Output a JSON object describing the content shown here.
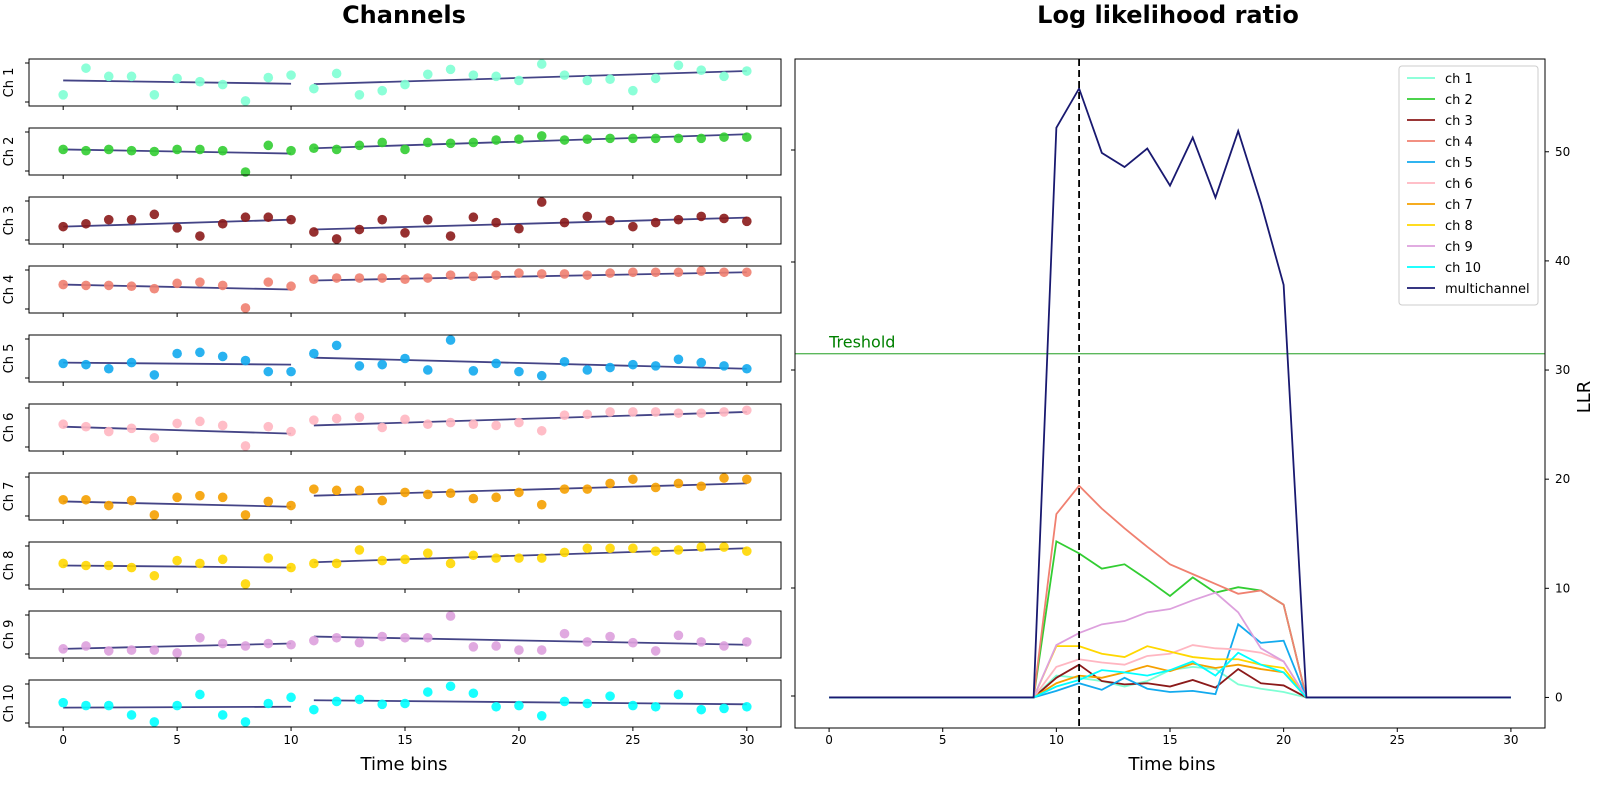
{
  "colors": {
    "ch1": "#7fffd4",
    "ch2": "#32cd32",
    "ch3": "#8b1a1a",
    "ch4": "#f08070",
    "ch5": "#12aaee",
    "ch6": "#ffb6c1",
    "ch7": "#f5a000",
    "ch8": "#ffd700",
    "ch9": "#dda0dd",
    "ch10": "#00ffff",
    "multichannel": "#191970",
    "fit": "#3b3b80",
    "threshold": "#5cb85c",
    "threshold_text": "#008000"
  },
  "chart_data": [
    {
      "type": "scatter",
      "title": "Channels",
      "xlabel": "Time bins",
      "xlim": [
        -1.5,
        31.5
      ],
      "xticks": [
        0,
        5,
        10,
        15,
        20,
        25,
        30
      ],
      "x": [
        0,
        1,
        2,
        3,
        4,
        5,
        6,
        7,
        8,
        9,
        10,
        11,
        12,
        13,
        14,
        15,
        16,
        17,
        18,
        19,
        20,
        21,
        22,
        23,
        24,
        25,
        26,
        27,
        28,
        29,
        30
      ],
      "segments": [
        [
          0,
          10
        ],
        [
          11,
          30
        ]
      ],
      "series": [
        {
          "name": "Ch 1",
          "values": [
            0.2,
            0.85,
            0.65,
            0.65,
            0.2,
            0.6,
            0.52,
            0.45,
            0.05,
            0.62,
            0.68,
            0.35,
            0.72,
            0.2,
            0.3,
            0.45,
            0.7,
            0.82,
            0.68,
            0.65,
            0.55,
            0.95,
            0.68,
            0.55,
            0.58,
            0.3,
            0.6,
            0.92,
            0.8,
            0.65,
            0.78
          ],
          "fit": [
            [
              0.55,
              0.47
            ],
            [
              0.46,
              0.78
            ]
          ]
        },
        {
          "name": "Ch 2",
          "values": [
            0.55,
            0.52,
            0.55,
            0.52,
            0.5,
            0.55,
            0.55,
            0.52,
            0.0,
            0.65,
            0.52,
            0.58,
            0.55,
            0.65,
            0.72,
            0.55,
            0.72,
            0.7,
            0.72,
            0.78,
            0.8,
            0.88,
            0.78,
            0.8,
            0.82,
            0.82,
            0.82,
            0.82,
            0.82,
            0.85,
            0.85
          ],
          "fit": [
            [
              0.55,
              0.45
            ],
            [
              0.58,
              0.92
            ]
          ]
        },
        {
          "name": "Ch 3",
          "values": [
            0.35,
            0.42,
            0.52,
            0.52,
            0.65,
            0.32,
            0.12,
            0.42,
            0.58,
            0.58,
            0.52,
            0.22,
            0.05,
            0.28,
            0.52,
            0.2,
            0.52,
            0.12,
            0.58,
            0.45,
            0.3,
            0.95,
            0.45,
            0.6,
            0.5,
            0.35,
            0.45,
            0.52,
            0.6,
            0.55,
            0.48
          ],
          "fit": [
            [
              0.35,
              0.52
            ],
            [
              0.28,
              0.57
            ]
          ]
        },
        {
          "name": "Ch 4",
          "values": [
            0.62,
            0.6,
            0.6,
            0.58,
            0.52,
            0.65,
            0.68,
            0.6,
            0.05,
            0.68,
            0.58,
            0.75,
            0.78,
            0.78,
            0.78,
            0.75,
            0.78,
            0.85,
            0.82,
            0.85,
            0.9,
            0.88,
            0.88,
            0.85,
            0.9,
            0.92,
            0.92,
            0.92,
            0.95,
            0.92,
            0.92
          ],
          "fit": [
            [
              0.62,
              0.5
            ],
            [
              0.72,
              0.92
            ]
          ]
        },
        {
          "name": "Ch 5",
          "values": [
            0.38,
            0.35,
            0.25,
            0.4,
            0.1,
            0.62,
            0.65,
            0.55,
            0.45,
            0.18,
            0.18,
            0.62,
            0.82,
            0.32,
            0.35,
            0.5,
            0.22,
            0.95,
            0.2,
            0.38,
            0.18,
            0.08,
            0.42,
            0.22,
            0.28,
            0.35,
            0.32,
            0.48,
            0.4,
            0.32,
            0.25
          ],
          "fit": [
            [
              0.4,
              0.35
            ],
            [
              0.52,
              0.25
            ]
          ]
        },
        {
          "name": "Ch 6",
          "values": [
            0.58,
            0.52,
            0.4,
            0.48,
            0.25,
            0.6,
            0.65,
            0.55,
            0.05,
            0.52,
            0.4,
            0.68,
            0.72,
            0.75,
            0.5,
            0.7,
            0.58,
            0.62,
            0.58,
            0.55,
            0.62,
            0.42,
            0.8,
            0.82,
            0.88,
            0.88,
            0.88,
            0.85,
            0.85,
            0.88,
            0.92
          ],
          "fit": [
            [
              0.52,
              0.35
            ],
            [
              0.55,
              0.88
            ]
          ]
        },
        {
          "name": "Ch 7",
          "values": [
            0.42,
            0.42,
            0.28,
            0.4,
            0.05,
            0.48,
            0.52,
            0.48,
            0.05,
            0.38,
            0.28,
            0.68,
            0.65,
            0.65,
            0.4,
            0.6,
            0.55,
            0.58,
            0.45,
            0.48,
            0.6,
            0.3,
            0.68,
            0.68,
            0.82,
            0.92,
            0.72,
            0.82,
            0.75,
            0.95,
            0.92
          ],
          "fit": [
            [
              0.38,
              0.25
            ],
            [
              0.52,
              0.82
            ]
          ]
        },
        {
          "name": "Ch 8",
          "values": [
            0.55,
            0.5,
            0.5,
            0.45,
            0.25,
            0.62,
            0.55,
            0.65,
            0.05,
            0.68,
            0.45,
            0.55,
            0.55,
            0.88,
            0.62,
            0.65,
            0.8,
            0.55,
            0.75,
            0.68,
            0.68,
            0.68,
            0.82,
            0.92,
            0.92,
            0.92,
            0.85,
            0.88,
            0.95,
            0.95,
            0.85
          ],
          "fit": [
            [
              0.5,
              0.45
            ],
            [
              0.58,
              0.92
            ]
          ]
        },
        {
          "name": "Ch 9",
          "values": [
            0.15,
            0.22,
            0.1,
            0.12,
            0.12,
            0.05,
            0.42,
            0.28,
            0.22,
            0.28,
            0.25,
            0.35,
            0.42,
            0.3,
            0.45,
            0.42,
            0.42,
            0.95,
            0.2,
            0.22,
            0.12,
            0.12,
            0.52,
            0.32,
            0.45,
            0.3,
            0.1,
            0.48,
            0.32,
            0.22,
            0.32
          ],
          "fit": [
            [
              0.15,
              0.28
            ],
            [
              0.45,
              0.25
            ]
          ]
        },
        {
          "name": "Ch 10",
          "values": [
            0.52,
            0.45,
            0.45,
            0.22,
            0.05,
            0.45,
            0.72,
            0.22,
            0.05,
            0.5,
            0.65,
            0.35,
            0.55,
            0.6,
            0.48,
            0.5,
            0.78,
            0.92,
            0.75,
            0.42,
            0.45,
            0.2,
            0.55,
            0.5,
            0.68,
            0.45,
            0.42,
            0.72,
            0.35,
            0.38,
            0.42
          ],
          "fit": [
            [
              0.4,
              0.42
            ],
            [
              0.58,
              0.48
            ]
          ]
        }
      ]
    },
    {
      "type": "line",
      "title": "Log likelihood ratio",
      "xlabel": "Time bins",
      "ylabel": "LLR",
      "xlim": [
        -1.5,
        31.5
      ],
      "ylim": [
        -2.8,
        58.5
      ],
      "xticks": [
        0,
        5,
        10,
        15,
        20,
        25,
        30
      ],
      "yticks": [
        0,
        10,
        20,
        30,
        40,
        50
      ],
      "threshold": {
        "value": 31.5,
        "label": "Treshold"
      },
      "vline": 11,
      "legend_position": "upper right",
      "x": [
        0,
        1,
        2,
        3,
        4,
        5,
        6,
        7,
        8,
        9,
        10,
        11,
        12,
        13,
        14,
        15,
        16,
        17,
        18,
        19,
        20,
        21,
        22,
        23,
        24,
        25,
        26,
        27,
        28,
        29,
        30
      ],
      "series": [
        {
          "name": "ch 1",
          "values": [
            0,
            0,
            0,
            0,
            0,
            0,
            0,
            0,
            0,
            0,
            2.0,
            1.8,
            1.5,
            1.0,
            1.5,
            2.5,
            2.8,
            2.6,
            1.2,
            0.8,
            0.5,
            0,
            0,
            0,
            0,
            0,
            0,
            0,
            0,
            0,
            0
          ]
        },
        {
          "name": "ch 2",
          "values": [
            0,
            0,
            0,
            0,
            0,
            0,
            0,
            0,
            0,
            0,
            14.3,
            13.2,
            11.8,
            12.2,
            10.8,
            9.3,
            11.0,
            9.6,
            10.1,
            9.8,
            8.5,
            0,
            0,
            0,
            0,
            0,
            0,
            0,
            0,
            0,
            0
          ]
        },
        {
          "name": "ch 3",
          "values": [
            0,
            0,
            0,
            0,
            0,
            0,
            0,
            0,
            0,
            0,
            1.8,
            3.0,
            1.5,
            1.2,
            1.3,
            1.0,
            1.6,
            0.9,
            2.6,
            1.3,
            1.1,
            0,
            0,
            0,
            0,
            0,
            0,
            0,
            0,
            0,
            0
          ]
        },
        {
          "name": "ch 4",
          "values": [
            0,
            0,
            0,
            0,
            0,
            0,
            0,
            0,
            0,
            0,
            16.8,
            19.4,
            17.3,
            15.5,
            13.8,
            12.2,
            11.3,
            10.4,
            9.5,
            9.8,
            8.5,
            0,
            0,
            0,
            0,
            0,
            0,
            0,
            0,
            0,
            0
          ]
        },
        {
          "name": "ch 5",
          "values": [
            0,
            0,
            0,
            0,
            0,
            0,
            0,
            0,
            0,
            0,
            0.6,
            1.3,
            0.7,
            1.8,
            0.8,
            0.5,
            0.6,
            0.3,
            6.7,
            5.0,
            5.2,
            0,
            0,
            0,
            0,
            0,
            0,
            0,
            0,
            0,
            0
          ]
        },
        {
          "name": "ch 6",
          "values": [
            0,
            0,
            0,
            0,
            0,
            0,
            0,
            0,
            0,
            0,
            2.8,
            3.5,
            3.2,
            3.0,
            3.8,
            4.0,
            4.8,
            4.5,
            4.4,
            4.1,
            3.3,
            0,
            0,
            0,
            0,
            0,
            0,
            0,
            0,
            0,
            0
          ]
        },
        {
          "name": "ch 7",
          "values": [
            0,
            0,
            0,
            0,
            0,
            0,
            0,
            0,
            0,
            0,
            1.3,
            2.0,
            1.8,
            2.3,
            2.9,
            2.4,
            3.1,
            2.7,
            3.0,
            2.6,
            2.3,
            0,
            0,
            0,
            0,
            0,
            0,
            0,
            0,
            0,
            0
          ]
        },
        {
          "name": "ch 8",
          "values": [
            0,
            0,
            0,
            0,
            0,
            0,
            0,
            0,
            0,
            0,
            4.7,
            4.7,
            4.0,
            3.7,
            4.7,
            4.2,
            3.7,
            3.5,
            3.5,
            3.0,
            2.7,
            0,
            0,
            0,
            0,
            0,
            0,
            0,
            0,
            0,
            0
          ]
        },
        {
          "name": "ch 9",
          "values": [
            0,
            0,
            0,
            0,
            0,
            0,
            0,
            0,
            0,
            0,
            4.8,
            5.9,
            6.7,
            7.0,
            7.8,
            8.1,
            8.9,
            9.6,
            7.8,
            4.5,
            3.3,
            0,
            0,
            0,
            0,
            0,
            0,
            0,
            0,
            0,
            0
          ]
        },
        {
          "name": "ch 10",
          "values": [
            0,
            0,
            0,
            0,
            0,
            0,
            0,
            0,
            0,
            0,
            1.0,
            1.6,
            2.5,
            2.3,
            2.0,
            2.5,
            3.3,
            2.0,
            4.1,
            3.0,
            2.3,
            0,
            0,
            0,
            0,
            0,
            0,
            0,
            0,
            0,
            0
          ]
        },
        {
          "name": "multichannel",
          "values": [
            0,
            0,
            0,
            0,
            0,
            0,
            0,
            0,
            0,
            0,
            52.2,
            55.8,
            49.9,
            48.6,
            50.3,
            46.9,
            51.3,
            45.8,
            51.9,
            45.3,
            37.8,
            0,
            0,
            0,
            0,
            0,
            0,
            0,
            0,
            0,
            0
          ]
        }
      ]
    }
  ]
}
